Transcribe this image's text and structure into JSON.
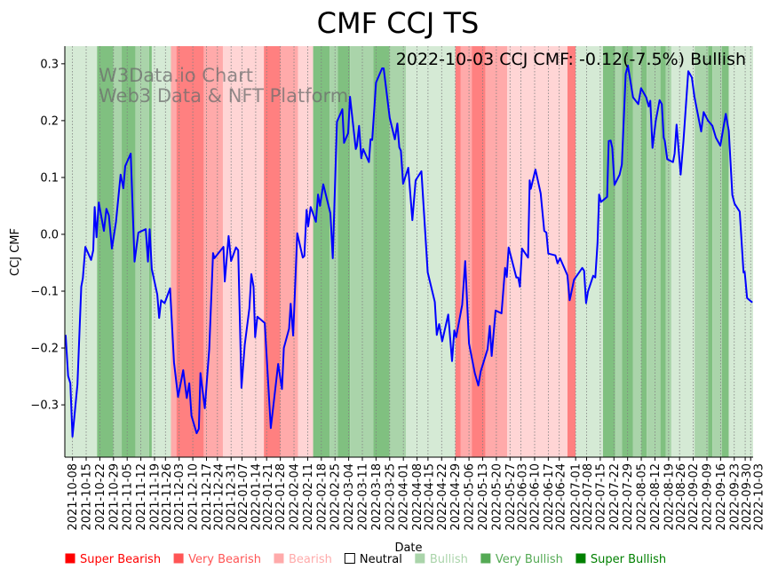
{
  "chart_data": {
    "type": "line",
    "title": "CMF CCJ TS",
    "xlabel": "Date",
    "ylabel": "CCJ CMF",
    "annotation": "2022-10-03 CCJ CMF: -0.12(-7.5%) Bullish",
    "watermark": [
      "W3Data.io Chart",
      "Web3 Data & NFT Platform"
    ],
    "x_unit": "trading-day index (0 = 2021-10-08)",
    "xlim": [
      -2.8,
      248.9
    ],
    "ylim": [
      -0.392,
      0.331
    ],
    "grid": "vertical dotted at x ticks",
    "yticks": [
      {
        "value": 0.3,
        "label": "0.3"
      },
      {
        "value": 0.2,
        "label": "0.2"
      },
      {
        "value": 0.1,
        "label": "0.1"
      },
      {
        "value": 0.0,
        "label": "0.0"
      },
      {
        "value": -0.1,
        "label": "−0.1"
      },
      {
        "value": -0.2,
        "label": "−0.2"
      },
      {
        "value": -0.3,
        "label": "−0.3"
      }
    ],
    "xticks": [
      {
        "x": 0,
        "label": "2021-10-08"
      },
      {
        "x": 5,
        "label": "2021-10-15"
      },
      {
        "x": 10,
        "label": "2021-10-22"
      },
      {
        "x": 15,
        "label": "2021-10-29"
      },
      {
        "x": 20,
        "label": "2021-11-05"
      },
      {
        "x": 25,
        "label": "2021-11-12"
      },
      {
        "x": 30,
        "label": "2021-11-19"
      },
      {
        "x": 34,
        "label": "2021-11-26"
      },
      {
        "x": 39,
        "label": "2021-12-03"
      },
      {
        "x": 44,
        "label": "2021-12-10"
      },
      {
        "x": 49,
        "label": "2021-12-17"
      },
      {
        "x": 53,
        "label": "2021-12-24"
      },
      {
        "x": 58,
        "label": "2021-12-31"
      },
      {
        "x": 62,
        "label": "2022-01-07"
      },
      {
        "x": 67,
        "label": "2022-01-14"
      },
      {
        "x": 71,
        "label": "2022-01-21"
      },
      {
        "x": 76,
        "label": "2022-01-28"
      },
      {
        "x": 81,
        "label": "2022-02-04"
      },
      {
        "x": 86,
        "label": "2022-02-11"
      },
      {
        "x": 91,
        "label": "2022-02-18"
      },
      {
        "x": 96,
        "label": "2022-02-25"
      },
      {
        "x": 101,
        "label": "2022-03-04"
      },
      {
        "x": 106,
        "label": "2022-03-11"
      },
      {
        "x": 111,
        "label": "2022-03-18"
      },
      {
        "x": 116,
        "label": "2022-03-25"
      },
      {
        "x": 121,
        "label": "2022-04-01"
      },
      {
        "x": 126,
        "label": "2022-04-08"
      },
      {
        "x": 130,
        "label": "2022-04-15"
      },
      {
        "x": 135,
        "label": "2022-04-22"
      },
      {
        "x": 140,
        "label": "2022-04-29"
      },
      {
        "x": 145,
        "label": "2022-05-06"
      },
      {
        "x": 150,
        "label": "2022-05-13"
      },
      {
        "x": 155,
        "label": "2022-05-20"
      },
      {
        "x": 160,
        "label": "2022-05-27"
      },
      {
        "x": 164,
        "label": "2022-06-03"
      },
      {
        "x": 169,
        "label": "2022-06-10"
      },
      {
        "x": 174,
        "label": "2022-06-17"
      },
      {
        "x": 178,
        "label": "2022-06-24"
      },
      {
        "x": 184,
        "label": "2022-07-01"
      },
      {
        "x": 188,
        "label": "2022-07-08"
      },
      {
        "x": 193,
        "label": "2022-07-15"
      },
      {
        "x": 198,
        "label": "2022-07-22"
      },
      {
        "x": 203,
        "label": "2022-07-29"
      },
      {
        "x": 208,
        "label": "2022-08-05"
      },
      {
        "x": 213,
        "label": "2022-08-12"
      },
      {
        "x": 218,
        "label": "2022-08-19"
      },
      {
        "x": 222,
        "label": "2022-08-26"
      },
      {
        "x": 227,
        "label": "2022-09-02"
      },
      {
        "x": 232,
        "label": "2022-09-09"
      },
      {
        "x": 237,
        "label": "2022-09-16"
      },
      {
        "x": 242,
        "label": "2022-09-23"
      },
      {
        "x": 246,
        "label": "2022-09-30"
      },
      {
        "x": 248,
        "label": "2022-10-03"
      }
    ],
    "legend": [
      {
        "label": "Super Bearish",
        "color": "#ff0000",
        "fill": "#ff8080"
      },
      {
        "label": "Very Bearish",
        "color": "#ff5555",
        "fill": "#ffaaaa"
      },
      {
        "label": "Bearish",
        "color": "#ffaaaa",
        "fill": "#ffd5d5"
      },
      {
        "label": "Neutral",
        "color": "#000000",
        "fill": "#ffffff"
      },
      {
        "label": "Bullish",
        "color": "#aad4aa",
        "fill": "#d5ead5"
      },
      {
        "label": "Very Bullish",
        "color": "#55aa55",
        "fill": "#aad4aa"
      },
      {
        "label": "Super Bullish",
        "color": "#008000",
        "fill": "#80c080"
      }
    ],
    "line_color": "#0000ff",
    "bands": [
      [
        -2.8,
        9,
        "Bullish"
      ],
      [
        9,
        15,
        "Super Bullish"
      ],
      [
        15,
        18,
        "Very Bullish"
      ],
      [
        18,
        23,
        "Super Bullish"
      ],
      [
        23,
        28,
        "Very Bullish"
      ],
      [
        28,
        29,
        "Super Bullish"
      ],
      [
        29,
        36,
        "Bullish"
      ],
      [
        36,
        38,
        "Very Bearish"
      ],
      [
        38,
        48,
        "Super Bearish"
      ],
      [
        48,
        55,
        "Very Bearish"
      ],
      [
        55,
        70,
        "Bearish"
      ],
      [
        70,
        76,
        "Super Bearish"
      ],
      [
        76,
        82.5,
        "Very Bearish"
      ],
      [
        82.5,
        88,
        "Bearish"
      ],
      [
        88,
        94,
        "Super Bullish"
      ],
      [
        94,
        97,
        "Very Bullish"
      ],
      [
        97,
        101.5,
        "Super Bullish"
      ],
      [
        101.5,
        110,
        "Very Bullish"
      ],
      [
        110,
        116,
        "Super Bullish"
      ],
      [
        116,
        122,
        "Very Bullish"
      ],
      [
        122,
        140,
        "Bullish"
      ],
      [
        140,
        142,
        "Super Bearish"
      ],
      [
        142,
        146,
        "Very Bearish"
      ],
      [
        146,
        151,
        "Super Bearish"
      ],
      [
        151,
        159,
        "Very Bearish"
      ],
      [
        159,
        181,
        "Bearish"
      ],
      [
        181,
        184,
        "Super Bearish"
      ],
      [
        184,
        194,
        "Bullish"
      ],
      [
        194,
        198.5,
        "Super Bullish"
      ],
      [
        198.5,
        201,
        "Very Bullish"
      ],
      [
        201,
        205,
        "Super Bullish"
      ],
      [
        205,
        208,
        "Very Bullish"
      ],
      [
        208,
        210,
        "Super Bullish"
      ],
      [
        210,
        215,
        "Very Bullish"
      ],
      [
        215,
        217,
        "Super Bullish"
      ],
      [
        217,
        219,
        "Very Bullish"
      ],
      [
        219,
        227.5,
        "Bullish"
      ],
      [
        227.5,
        232.5,
        "Very Bullish"
      ],
      [
        232.5,
        234,
        "Super Bullish"
      ],
      [
        234,
        237.5,
        "Very Bullish"
      ],
      [
        237.5,
        240,
        "Super Bullish"
      ],
      [
        240,
        248.9,
        "Bullish"
      ]
    ],
    "points": [
      [
        -2.5,
        -0.177
      ],
      [
        -1.6,
        -0.249
      ],
      [
        -0.8,
        -0.262
      ],
      [
        0.0,
        -0.356
      ],
      [
        1.8,
        -0.264
      ],
      [
        3.2,
        -0.092
      ],
      [
        3.8,
        -0.077
      ],
      [
        4.7,
        -0.022
      ],
      [
        6.8,
        -0.045
      ],
      [
        7.6,
        -0.028
      ],
      [
        8.1,
        0.048
      ],
      [
        8.8,
        -0.005
      ],
      [
        9.6,
        0.056
      ],
      [
        11.5,
        0.006
      ],
      [
        12.4,
        0.045
      ],
      [
        13.3,
        0.033
      ],
      [
        14.4,
        -0.025
      ],
      [
        15.9,
        0.022
      ],
      [
        17.6,
        0.105
      ],
      [
        18.6,
        0.081
      ],
      [
        19.3,
        0.12
      ],
      [
        21.3,
        0.142
      ],
      [
        22.7,
        -0.048
      ],
      [
        24.1,
        0.003
      ],
      [
        26.8,
        0.009
      ],
      [
        27.6,
        -0.048
      ],
      [
        28.2,
        0.009
      ],
      [
        29.0,
        -0.061
      ],
      [
        31.0,
        -0.106
      ],
      [
        31.7,
        -0.147
      ],
      [
        32.4,
        -0.116
      ],
      [
        33.7,
        -0.121
      ],
      [
        35.7,
        -0.095
      ],
      [
        37.1,
        -0.225
      ],
      [
        38.6,
        -0.286
      ],
      [
        40.5,
        -0.239
      ],
      [
        41.8,
        -0.288
      ],
      [
        42.7,
        -0.262
      ],
      [
        43.5,
        -0.319
      ],
      [
        45.4,
        -0.35
      ],
      [
        46.2,
        -0.342
      ],
      [
        46.8,
        -0.244
      ],
      [
        48.4,
        -0.306
      ],
      [
        50.0,
        -0.202
      ],
      [
        51.4,
        -0.033
      ],
      [
        51.9,
        -0.042
      ],
      [
        55.2,
        -0.022
      ],
      [
        55.7,
        -0.083
      ],
      [
        57.1,
        -0.003
      ],
      [
        58.0,
        -0.047
      ],
      [
        59.8,
        -0.023
      ],
      [
        60.6,
        -0.028
      ],
      [
        61.8,
        -0.27
      ],
      [
        63.0,
        -0.194
      ],
      [
        64.7,
        -0.13
      ],
      [
        65.4,
        -0.07
      ],
      [
        66.2,
        -0.092
      ],
      [
        66.8,
        -0.181
      ],
      [
        67.6,
        -0.145
      ],
      [
        70.3,
        -0.156
      ],
      [
        72.5,
        -0.341
      ],
      [
        75.2,
        -0.228
      ],
      [
        76.6,
        -0.272
      ],
      [
        77.3,
        -0.2
      ],
      [
        79.2,
        -0.166
      ],
      [
        79.8,
        -0.122
      ],
      [
        80.7,
        -0.178
      ],
      [
        82.2,
        0.002
      ],
      [
        84.2,
        -0.041
      ],
      [
        84.8,
        -0.038
      ],
      [
        85.6,
        0.043
      ],
      [
        86.2,
        0.014
      ],
      [
        87.1,
        0.048
      ],
      [
        89.0,
        0.022
      ],
      [
        89.8,
        0.07
      ],
      [
        90.5,
        0.05
      ],
      [
        91.7,
        0.088
      ],
      [
        94.3,
        0.037
      ],
      [
        95.2,
        -0.042
      ],
      [
        96.7,
        0.198
      ],
      [
        98.7,
        0.22
      ],
      [
        99.3,
        0.161
      ],
      [
        100.8,
        0.178
      ],
      [
        101.5,
        0.242
      ],
      [
        103.6,
        0.15
      ],
      [
        104.0,
        0.155
      ],
      [
        104.8,
        0.191
      ],
      [
        105.6,
        0.134
      ],
      [
        106.3,
        0.15
      ],
      [
        108.4,
        0.127
      ],
      [
        109.0,
        0.167
      ],
      [
        109.6,
        0.166
      ],
      [
        111.0,
        0.267
      ],
      [
        113.2,
        0.292
      ],
      [
        113.8,
        0.292
      ],
      [
        116.0,
        0.205
      ],
      [
        117.9,
        0.167
      ],
      [
        118.8,
        0.195
      ],
      [
        119.5,
        0.153
      ],
      [
        120.1,
        0.147
      ],
      [
        120.9,
        0.089
      ],
      [
        122.8,
        0.117
      ],
      [
        124.3,
        0.025
      ],
      [
        125.5,
        0.095
      ],
      [
        127.6,
        0.111
      ],
      [
        129.9,
        -0.067
      ],
      [
        132.5,
        -0.119
      ],
      [
        133.2,
        -0.177
      ],
      [
        134.1,
        -0.158
      ],
      [
        135.2,
        -0.188
      ],
      [
        137.4,
        -0.141
      ],
      [
        138.8,
        -0.223
      ],
      [
        139.6,
        -0.169
      ],
      [
        140.3,
        -0.181
      ],
      [
        142.5,
        -0.124
      ],
      [
        143.6,
        -0.047
      ],
      [
        145.0,
        -0.192
      ],
      [
        147.1,
        -0.244
      ],
      [
        148.4,
        -0.266
      ],
      [
        149.3,
        -0.241
      ],
      [
        151.8,
        -0.202
      ],
      [
        152.6,
        -0.161
      ],
      [
        153.3,
        -0.214
      ],
      [
        154.7,
        -0.134
      ],
      [
        156.9,
        -0.139
      ],
      [
        158.2,
        -0.059
      ],
      [
        158.8,
        -0.075
      ],
      [
        159.5,
        -0.023
      ],
      [
        162.3,
        -0.076
      ],
      [
        163.0,
        -0.076
      ],
      [
        163.6,
        -0.092
      ],
      [
        164.4,
        -0.025
      ],
      [
        166.6,
        -0.041
      ],
      [
        167.2,
        0.095
      ],
      [
        167.6,
        0.08
      ],
      [
        169.3,
        0.114
      ],
      [
        171.2,
        0.072
      ],
      [
        172.5,
        0.006
      ],
      [
        173.3,
        0.003
      ],
      [
        174.0,
        -0.034
      ],
      [
        176.6,
        -0.037
      ],
      [
        177.4,
        -0.051
      ],
      [
        178.3,
        -0.042
      ],
      [
        181.0,
        -0.072
      ],
      [
        181.8,
        -0.116
      ],
      [
        182.2,
        -0.108
      ],
      [
        183.4,
        -0.08
      ],
      [
        186.4,
        -0.059
      ],
      [
        187.1,
        -0.064
      ],
      [
        187.8,
        -0.121
      ],
      [
        188.5,
        -0.101
      ],
      [
        190.4,
        -0.073
      ],
      [
        191.2,
        -0.076
      ],
      [
        192.0,
        -0.015
      ],
      [
        192.6,
        0.07
      ],
      [
        193.3,
        0.057
      ],
      [
        195.5,
        0.066
      ],
      [
        196.1,
        0.164
      ],
      [
        196.8,
        0.165
      ],
      [
        197.4,
        0.152
      ],
      [
        198.2,
        0.087
      ],
      [
        200.1,
        0.105
      ],
      [
        200.9,
        0.123
      ],
      [
        202.3,
        0.282
      ],
      [
        203.1,
        0.297
      ],
      [
        205.0,
        0.241
      ],
      [
        206.9,
        0.229
      ],
      [
        207.9,
        0.257
      ],
      [
        209.8,
        0.241
      ],
      [
        210.7,
        0.225
      ],
      [
        211.3,
        0.235
      ],
      [
        212.1,
        0.152
      ],
      [
        213.3,
        0.2
      ],
      [
        214.7,
        0.236
      ],
      [
        215.5,
        0.229
      ],
      [
        216.2,
        0.17
      ],
      [
        216.6,
        0.165
      ],
      [
        217.5,
        0.132
      ],
      [
        219.6,
        0.127
      ],
      [
        220.2,
        0.142
      ],
      [
        220.9,
        0.193
      ],
      [
        222.4,
        0.105
      ],
      [
        223.4,
        0.163
      ],
      [
        225.2,
        0.287
      ],
      [
        226.5,
        0.276
      ],
      [
        227.4,
        0.243
      ],
      [
        229.9,
        0.181
      ],
      [
        230.8,
        0.215
      ],
      [
        232.4,
        0.2
      ],
      [
        234.0,
        0.191
      ],
      [
        235.3,
        0.17
      ],
      [
        236.9,
        0.156
      ],
      [
        238.9,
        0.212
      ],
      [
        240.0,
        0.182
      ],
      [
        241.3,
        0.069
      ],
      [
        242.1,
        0.054
      ],
      [
        244.0,
        0.04
      ],
      [
        245.4,
        -0.067
      ],
      [
        245.8,
        -0.066
      ],
      [
        246.7,
        -0.112
      ],
      [
        248.6,
        -0.12
      ]
    ]
  }
}
